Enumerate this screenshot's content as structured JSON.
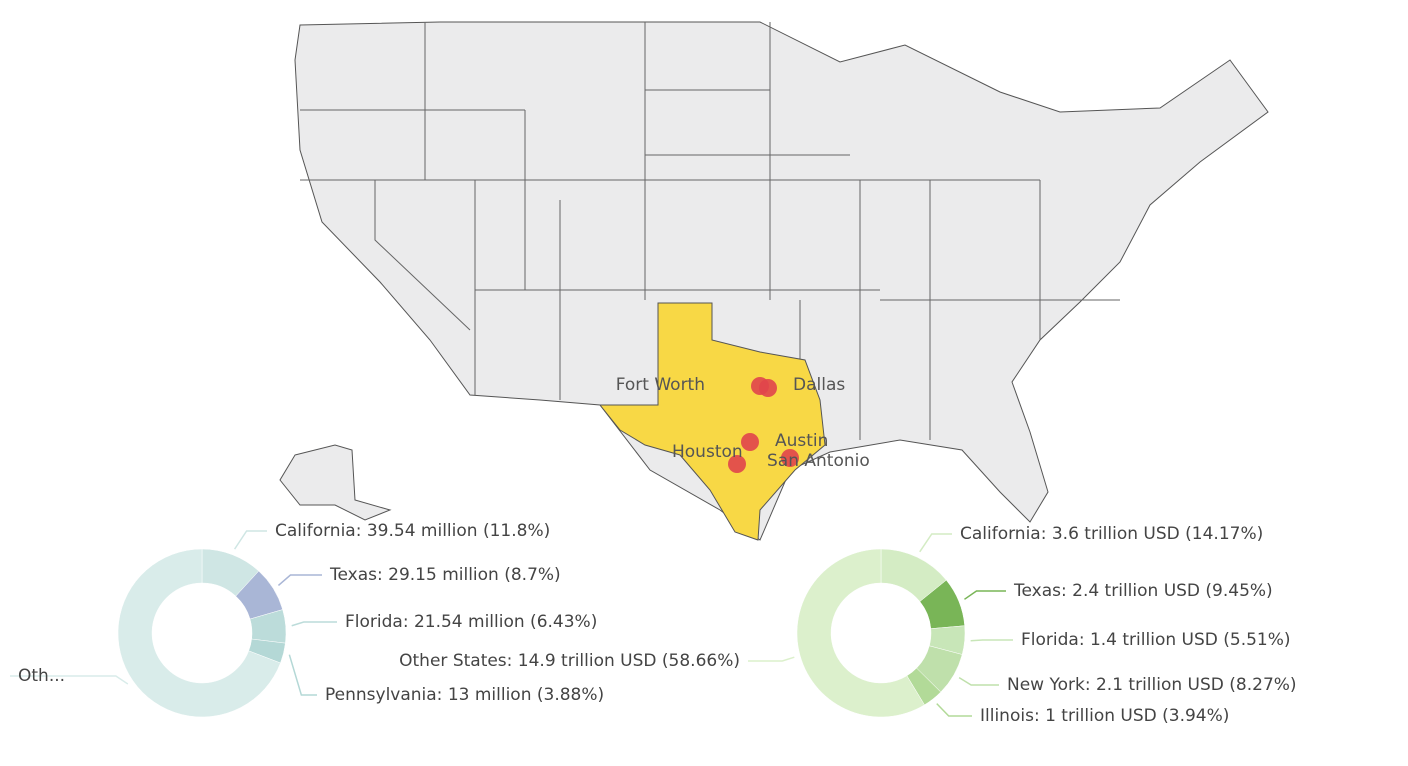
{
  "map": {
    "cities": [
      "Fort Worth",
      "Dallas",
      "Austin",
      "Houston",
      "San Antonio"
    ]
  },
  "chart_data": [
    {
      "type": "pie",
      "values": [
        11.8,
        8.7,
        6.43,
        3.88,
        69.19
      ],
      "value_labels": [
        "California: 39.54 million (11.8%)",
        "Texas: 29.15 million (8.7%)",
        "Florida: 21.54 million (6.43%)",
        "Pennsylvania: 13 million (3.88%)",
        "Oth..."
      ],
      "colors": [
        "#cfe6e4",
        "#a9b6d6",
        "#bcdcda",
        "#b4d8d6",
        "#d9ecea"
      ]
    },
    {
      "type": "pie",
      "values": [
        14.17,
        9.45,
        5.51,
        8.27,
        3.94,
        58.66
      ],
      "value_labels": [
        "California: 3.6 trillion USD (14.17%)",
        "Texas: 2.4 trillion USD (9.45%)",
        "Florida: 1.4 trillion USD (5.51%)",
        "New York: 2.1 trillion USD (8.27%)",
        "Illinois: 1 trillion USD (3.94%)",
        "Other States: 14.9 trillion USD (58.66%)"
      ],
      "colors": [
        "#d4ecc4",
        "#79b557",
        "#c8e6b8",
        "#bfe0ab",
        "#b2da98",
        "#dcf0cc"
      ]
    }
  ]
}
